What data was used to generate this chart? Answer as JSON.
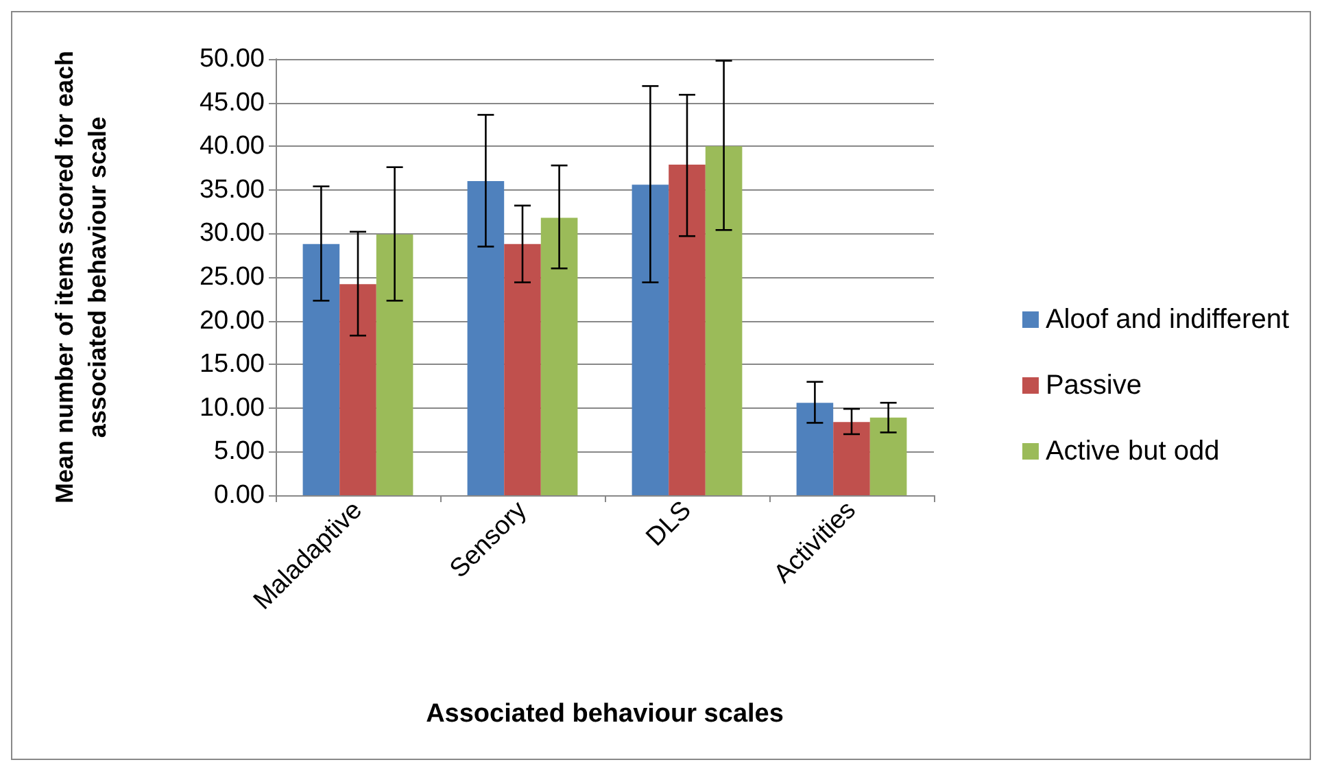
{
  "chart_data": {
    "type": "bar",
    "xlabel": "Associated behaviour scales",
    "ylabel": "Mean number of items scored for each\nassociated behaviour scale",
    "categories": [
      "Maladaptive",
      "Sensory",
      "DLS",
      "Activities"
    ],
    "series": [
      {
        "name": "Aloof and indifferent",
        "color": "#4f81bd",
        "values": [
          28.8,
          36.0,
          35.6,
          10.6
        ],
        "errors": [
          [
            22.3,
            35.4
          ],
          [
            28.5,
            43.6
          ],
          [
            24.4,
            46.9
          ],
          [
            8.3,
            13.0
          ]
        ]
      },
      {
        "name": "Passive",
        "color": "#c0504d",
        "values": [
          24.2,
          28.8,
          37.9,
          8.4
        ],
        "errors": [
          [
            18.3,
            30.2
          ],
          [
            24.4,
            33.2
          ],
          [
            29.7,
            45.9
          ],
          [
            7.0,
            9.9
          ]
        ]
      },
      {
        "name": "Active but odd",
        "color": "#9bbb59",
        "values": [
          29.9,
          31.8,
          40.0,
          8.9
        ],
        "errors": [
          [
            22.3,
            37.6
          ],
          [
            26.0,
            37.8
          ],
          [
            30.4,
            49.8
          ],
          [
            7.2,
            10.6
          ]
        ]
      }
    ],
    "ylim": [
      0,
      50
    ],
    "yticks": [
      {
        "value": 0,
        "label": "0.00"
      },
      {
        "value": 5,
        "label": "5.00"
      },
      {
        "value": 10,
        "label": "10.00"
      },
      {
        "value": 15,
        "label": "15.00"
      },
      {
        "value": 20,
        "label": "20.00"
      },
      {
        "value": 25,
        "label": "25.00"
      },
      {
        "value": 30,
        "label": "30.00"
      },
      {
        "value": 35,
        "label": "35.00"
      },
      {
        "value": 40,
        "label": "40.00"
      },
      {
        "value": 45,
        "label": "45.00"
      },
      {
        "value": 50,
        "label": "50.00"
      }
    ],
    "grid": "y",
    "legend": "right"
  }
}
